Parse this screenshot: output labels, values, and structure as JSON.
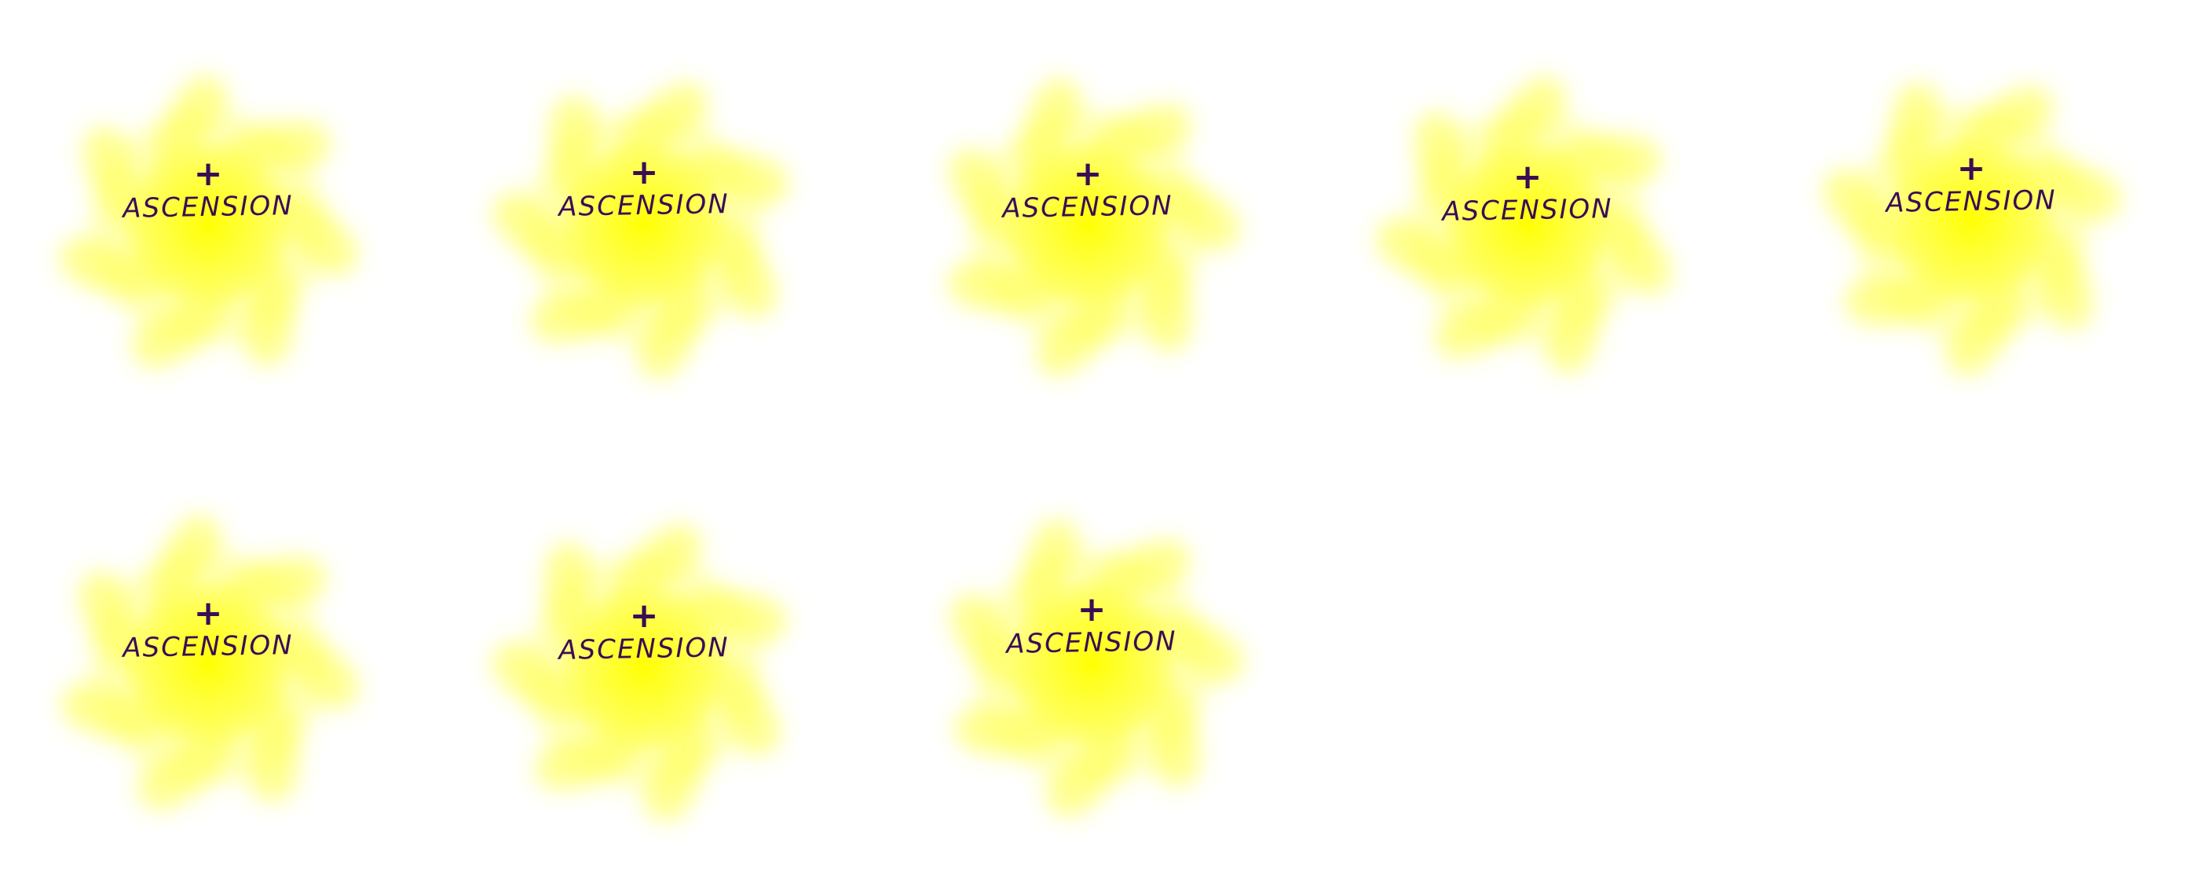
{
  "sprite_sheet": {
    "background_color": "#ffffff",
    "glow_color": "#ffff3c",
    "glow_highlight": "#ffff00",
    "text_color": "#3a0d55",
    "frames": [
      {
        "label": "ASCENSION",
        "icon": "plus-icon",
        "swirl_rotation_deg": 0
      },
      {
        "label": "ASCENSION",
        "icon": "plus-icon",
        "swirl_rotation_deg": 20
      },
      {
        "label": "ASCENSION",
        "icon": "plus-icon",
        "swirl_rotation_deg": 40
      },
      {
        "label": "ASCENSION",
        "icon": "plus-icon",
        "swirl_rotation_deg": 60
      },
      {
        "label": "ASCENSION",
        "icon": "plus-icon",
        "swirl_rotation_deg": 80
      },
      {
        "label": "ASCENSION",
        "icon": "plus-icon",
        "swirl_rotation_deg": 100
      },
      {
        "label": "ASCENSION",
        "icon": "plus-icon",
        "swirl_rotation_deg": 120
      },
      {
        "label": "ASCENSION",
        "icon": "plus-icon",
        "swirl_rotation_deg": 140
      }
    ]
  }
}
